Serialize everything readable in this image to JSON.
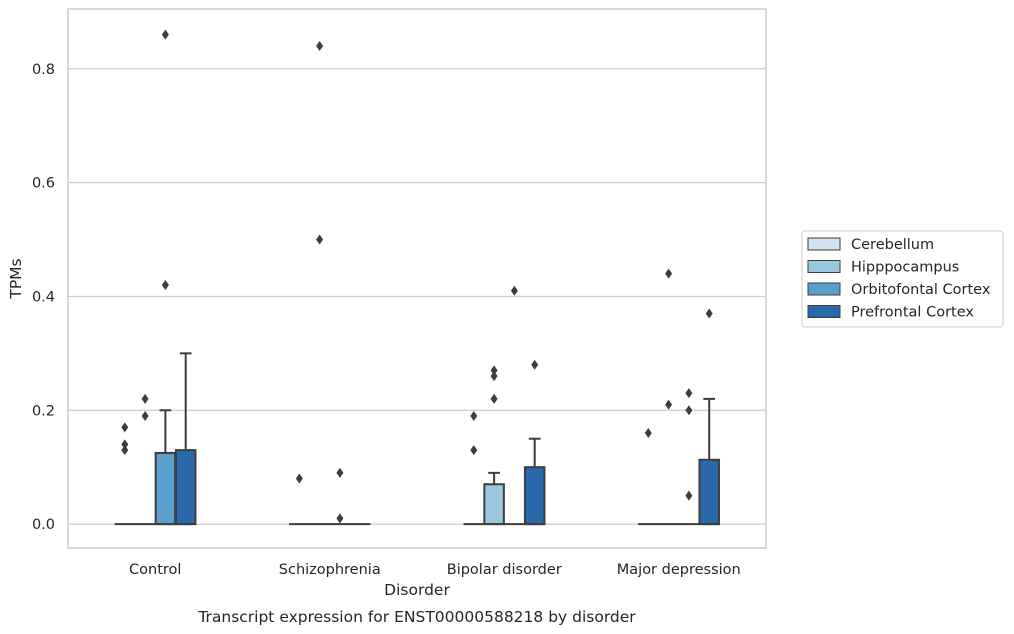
{
  "chart_data": {
    "type": "box",
    "title": "",
    "caption": "Transcript expression for ENST00000588218 by disorder",
    "xlabel": "Disorder",
    "ylabel": "TPMs",
    "ylim": [
      -0.042,
      0.905
    ],
    "yticks": [
      "0.0",
      "0.2",
      "0.4",
      "0.6",
      "0.8"
    ],
    "ytick_values": [
      0.0,
      0.2,
      0.4,
      0.6,
      0.8
    ],
    "grid": "horizontal",
    "legend_position": "right",
    "categories": [
      "Control",
      "Schizophrenia",
      "Bipolar disorder",
      "Major depression"
    ],
    "series": [
      {
        "name": "Cerebellum",
        "color": "#d2e3f3",
        "boxes": [
          {
            "q1": 0,
            "median": 0,
            "q3": 0,
            "whisker_low": 0,
            "whisker_high": 0,
            "outliers": [
              0.13,
              0.14,
              0.17
            ]
          },
          {
            "q1": 0,
            "median": 0,
            "q3": 0,
            "whisker_low": 0,
            "whisker_high": 0,
            "outliers": [
              0.08
            ]
          },
          {
            "q1": 0,
            "median": 0,
            "q3": 0,
            "whisker_low": 0,
            "whisker_high": 0,
            "outliers": [
              0.13,
              0.19
            ]
          },
          {
            "q1": 0,
            "median": 0,
            "q3": 0,
            "whisker_low": 0,
            "whisker_high": 0,
            "outliers": [
              0.16
            ]
          }
        ]
      },
      {
        "name": "Hipppocampus",
        "color": "#9ac8e1",
        "boxes": [
          {
            "q1": 0,
            "median": 0,
            "q3": 0,
            "whisker_low": 0,
            "whisker_high": 0,
            "outliers": [
              0.19,
              0.22
            ]
          },
          {
            "q1": 0,
            "median": 0,
            "q3": 0,
            "whisker_low": 0,
            "whisker_high": 0,
            "outliers": [
              0.5,
              0.84
            ]
          },
          {
            "q1": 0,
            "median": 0,
            "q3": 0.07,
            "whisker_low": 0,
            "whisker_high": 0.09,
            "outliers": [
              0.22,
              0.26,
              0.27
            ]
          },
          {
            "q1": 0,
            "median": 0,
            "q3": 0,
            "whisker_low": 0,
            "whisker_high": 0,
            "outliers": [
              0.21,
              0.44
            ]
          }
        ]
      },
      {
        "name": "Orbitofontal Cortex",
        "color": "#5b9fce",
        "boxes": [
          {
            "q1": 0,
            "median": 0,
            "q3": 0.125,
            "whisker_low": 0,
            "whisker_high": 0.2,
            "outliers": [
              0.42,
              0.86
            ]
          },
          {
            "q1": 0,
            "median": 0,
            "q3": 0,
            "whisker_low": 0,
            "whisker_high": 0,
            "outliers": [
              0.01,
              0.09
            ]
          },
          {
            "q1": 0,
            "median": 0,
            "q3": 0,
            "whisker_low": 0,
            "whisker_high": 0,
            "outliers": [
              0.41
            ]
          },
          {
            "q1": 0,
            "median": 0,
            "q3": 0,
            "whisker_low": 0,
            "whisker_high": 0,
            "outliers": [
              0.05,
              0.2,
              0.23
            ]
          }
        ]
      },
      {
        "name": "Prefrontal Cortex",
        "color": "#2a6aab",
        "boxes": [
          {
            "q1": 0,
            "median": 0,
            "q3": 0.13,
            "whisker_low": 0,
            "whisker_high": 0.3,
            "outliers": []
          },
          {
            "q1": 0,
            "median": 0,
            "q3": 0,
            "whisker_low": 0,
            "whisker_high": 0,
            "outliers": []
          },
          {
            "q1": 0,
            "median": 0,
            "q3": 0.1,
            "whisker_low": 0,
            "whisker_high": 0.15,
            "outliers": [
              0.28
            ]
          },
          {
            "q1": 0,
            "median": 0,
            "q3": 0.113,
            "whisker_low": 0,
            "whisker_high": 0.22,
            "outliers": [
              0.37
            ]
          }
        ]
      }
    ]
  }
}
